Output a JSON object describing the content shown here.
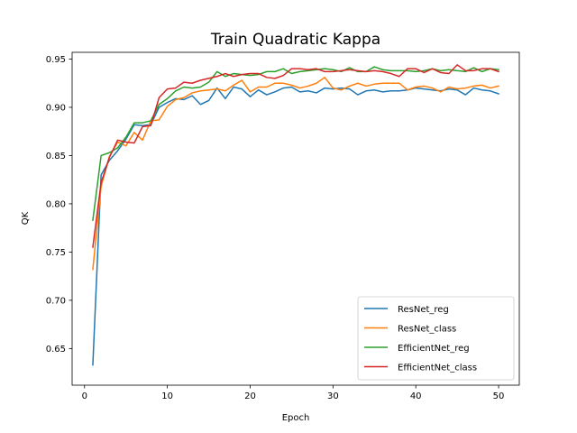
{
  "chart_data": {
    "type": "line",
    "title": "Train Quadratic Kappa",
    "xlabel": "Epoch",
    "ylabel": "QK",
    "xlim": [
      -1.5,
      52.5
    ],
    "ylim": [
      0.612,
      0.957
    ],
    "xticks": [
      0,
      10,
      20,
      30,
      40,
      50
    ],
    "yticks": [
      0.65,
      0.7,
      0.75,
      0.8,
      0.85,
      0.9,
      0.95
    ],
    "ytick_labels": [
      "0.65",
      "0.70",
      "0.75",
      "0.80",
      "0.85",
      "0.90",
      "0.95"
    ],
    "grid": false,
    "legend_position": "lower-right",
    "x": [
      1,
      2,
      3,
      4,
      5,
      6,
      7,
      8,
      9,
      10,
      11,
      12,
      13,
      14,
      15,
      16,
      17,
      18,
      19,
      20,
      21,
      22,
      23,
      24,
      25,
      26,
      27,
      28,
      29,
      30,
      31,
      32,
      33,
      34,
      35,
      36,
      37,
      38,
      39,
      40,
      41,
      42,
      43,
      44,
      45,
      46,
      47,
      48,
      49,
      50
    ],
    "series": [
      {
        "name": "ResNet_reg",
        "color": "#1f77b4",
        "values": [
          0.633,
          0.83,
          0.845,
          0.855,
          0.867,
          0.882,
          0.881,
          0.882,
          0.9,
          0.905,
          0.909,
          0.908,
          0.912,
          0.903,
          0.907,
          0.92,
          0.909,
          0.921,
          0.919,
          0.911,
          0.918,
          0.913,
          0.916,
          0.92,
          0.921,
          0.916,
          0.917,
          0.915,
          0.92,
          0.919,
          0.92,
          0.919,
          0.913,
          0.917,
          0.918,
          0.916,
          0.917,
          0.917,
          0.918,
          0.92,
          0.919,
          0.918,
          0.917,
          0.919,
          0.918,
          0.913,
          0.92,
          0.918,
          0.917,
          0.914
        ]
      },
      {
        "name": "ResNet_class",
        "color": "#ff7f0e",
        "values": [
          0.732,
          0.818,
          0.849,
          0.864,
          0.86,
          0.874,
          0.866,
          0.886,
          0.887,
          0.901,
          0.908,
          0.91,
          0.915,
          0.917,
          0.918,
          0.919,
          0.917,
          0.923,
          0.928,
          0.916,
          0.921,
          0.921,
          0.925,
          0.925,
          0.923,
          0.92,
          0.922,
          0.925,
          0.931,
          0.92,
          0.918,
          0.922,
          0.925,
          0.922,
          0.924,
          0.925,
          0.925,
          0.925,
          0.918,
          0.921,
          0.922,
          0.92,
          0.916,
          0.921,
          0.919,
          0.92,
          0.922,
          0.923,
          0.92,
          0.922
        ]
      },
      {
        "name": "EfficientNet_reg",
        "color": "#2ca02c",
        "values": [
          0.783,
          0.85,
          0.853,
          0.858,
          0.869,
          0.884,
          0.884,
          0.886,
          0.903,
          0.909,
          0.917,
          0.921,
          0.92,
          0.921,
          0.926,
          0.937,
          0.932,
          0.935,
          0.934,
          0.933,
          0.934,
          0.937,
          0.937,
          0.94,
          0.935,
          0.937,
          0.938,
          0.939,
          0.94,
          0.939,
          0.937,
          0.941,
          0.937,
          0.937,
          0.942,
          0.939,
          0.938,
          0.938,
          0.938,
          0.937,
          0.938,
          0.94,
          0.938,
          0.939,
          0.938,
          0.937,
          0.941,
          0.937,
          0.94,
          0.939
        ]
      },
      {
        "name": "EfficientNet_class",
        "color": "#d62728",
        "values": [
          0.755,
          0.822,
          0.848,
          0.866,
          0.864,
          0.863,
          0.88,
          0.881,
          0.91,
          0.919,
          0.92,
          0.926,
          0.925,
          0.928,
          0.93,
          0.932,
          0.935,
          0.932,
          0.934,
          0.935,
          0.935,
          0.931,
          0.93,
          0.933,
          0.94,
          0.94,
          0.939,
          0.94,
          0.937,
          0.937,
          0.938,
          0.939,
          0.938,
          0.937,
          0.938,
          0.937,
          0.935,
          0.932,
          0.94,
          0.94,
          0.936,
          0.94,
          0.936,
          0.935,
          0.944,
          0.938,
          0.938,
          0.94,
          0.94,
          0.937
        ]
      }
    ]
  }
}
